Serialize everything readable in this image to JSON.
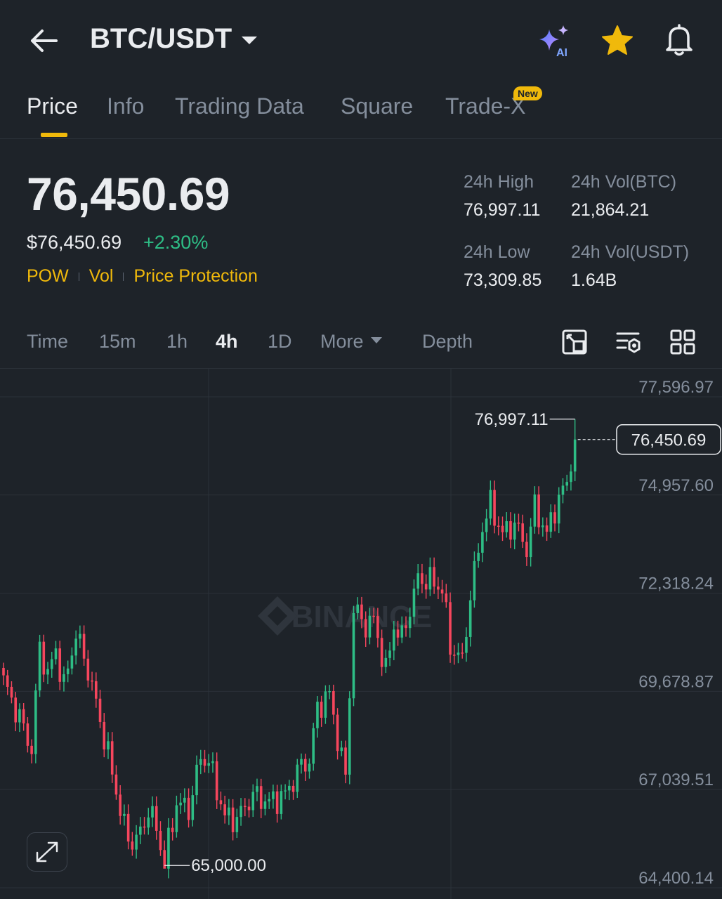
{
  "header": {
    "pair": "BTC/USDT",
    "icons": [
      "back-arrow-icon",
      "chevron-down-icon",
      "ai-sparkle-icon",
      "star-icon",
      "bell-icon"
    ],
    "ai_label": "AI",
    "colors": {
      "star": "#f0b90b",
      "ai_gradient_start": "#4d7cfe",
      "ai_gradient_end": "#c58bff"
    }
  },
  "tabs": [
    {
      "label": "Price",
      "active": true
    },
    {
      "label": "Info"
    },
    {
      "label": "Trading Data"
    },
    {
      "label": "Square"
    },
    {
      "label": "Trade-X",
      "badge": "New"
    }
  ],
  "ticker": {
    "last_price": "76,450.69",
    "usd_price": "$76,450.69",
    "change": "+2.30%",
    "tags": [
      "POW",
      "Vol",
      "Price Protection"
    ],
    "stats": {
      "high_label": "24h High",
      "high_value": "76,997.11",
      "vol_btc_label": "24h Vol(BTC)",
      "vol_btc_value": "21,864.21",
      "low_label": "24h Low",
      "low_value": "73,309.85",
      "vol_usdt_label": "24h Vol(USDT)",
      "vol_usdt_value": "1.64B"
    }
  },
  "intervals": {
    "items": [
      "Time",
      "15m",
      "1h",
      "4h",
      "1D",
      "More",
      "Depth"
    ],
    "active": "4h",
    "tools": [
      "chart-settings-icon",
      "indicator-settings-icon",
      "layout-grid-icon"
    ]
  },
  "chart_data": {
    "type": "candlestick",
    "timeframe": "4h",
    "watermark": "BINANCE",
    "y_axis_labels": [
      "77,596.97",
      "74,957.60",
      "72,318.24",
      "69,678.87",
      "67,039.51",
      "64,400.14"
    ],
    "ylim": [
      64400.14,
      77596.97
    ],
    "current_price": 76450.69,
    "current_price_label": "76,450.69",
    "max_marker": {
      "value": 76997.11,
      "label": "76,997.11"
    },
    "min_marker": {
      "value": 65000.0,
      "label": "65,000.00"
    },
    "colors": {
      "up": "#2ebd85",
      "down": "#f6465d",
      "grid": "#2b3139",
      "axis_text": "#848e9c"
    },
    "anchors": [
      [
        0,
        69950
      ],
      [
        5,
        68700
      ],
      [
        7,
        68100
      ],
      [
        9,
        70900
      ],
      [
        11,
        70100
      ],
      [
        13,
        70800
      ],
      [
        15,
        69800
      ],
      [
        18,
        71250
      ],
      [
        21,
        70250
      ],
      [
        24,
        68900
      ],
      [
        27,
        67500
      ],
      [
        30,
        66000
      ],
      [
        32,
        65600
      ],
      [
        34,
        65850
      ],
      [
        36,
        66500
      ],
      [
        38,
        66000
      ],
      [
        40,
        65050
      ],
      [
        43,
        66700
      ],
      [
        46,
        66500
      ],
      [
        49,
        67900
      ],
      [
        51,
        67800
      ],
      [
        55,
        66300
      ],
      [
        58,
        66250
      ],
      [
        62,
        66900
      ],
      [
        66,
        66700
      ],
      [
        70,
        66900
      ],
      [
        74,
        67700
      ],
      [
        76,
        67800
      ],
      [
        78,
        69250
      ],
      [
        81,
        69600
      ],
      [
        84,
        67850
      ],
      [
        85,
        67400
      ],
      [
        87,
        71900
      ],
      [
        90,
        71450
      ],
      [
        92,
        71600
      ],
      [
        95,
        70200
      ],
      [
        97,
        71450
      ],
      [
        99,
        71100
      ],
      [
        103,
        72700
      ],
      [
        106,
        72650
      ],
      [
        109,
        72450
      ],
      [
        111,
        70900
      ],
      [
        114,
        70500
      ],
      [
        116,
        72250
      ],
      [
        119,
        74100
      ],
      [
        121,
        74700
      ],
      [
        124,
        73900
      ],
      [
        127,
        74200
      ],
      [
        130,
        73500
      ],
      [
        132,
        74650
      ],
      [
        135,
        73900
      ],
      [
        137,
        74600
      ],
      [
        140,
        75300
      ],
      [
        142,
        76450
      ]
    ],
    "last_high": 76997.11,
    "min_index": 40,
    "candle_count": 143
  }
}
